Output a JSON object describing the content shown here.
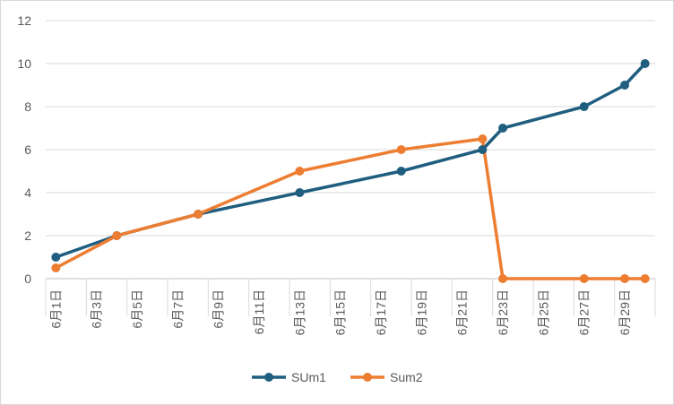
{
  "chart_data": {
    "type": "line",
    "title": "",
    "xlabel": "",
    "ylabel": "",
    "ylim": [
      0,
      12
    ],
    "y_ticks": [
      0,
      2,
      4,
      6,
      8,
      10,
      12
    ],
    "grid": "horizontal",
    "legend_position": "bottom",
    "x_tick_labels": [
      "6月1日",
      "6月3日",
      "6月5日",
      "6月7日",
      "6月9日",
      "6月11日",
      "6月13日",
      "6月15日",
      "6月17日",
      "6月19日",
      "6月21日",
      "6月23日",
      "6月25日",
      "6月27日",
      "6月29日"
    ],
    "x_range": [
      "6月1日",
      "6月30日"
    ],
    "series": [
      {
        "name": "SUm1",
        "color": "#1f5e7f",
        "points": [
          {
            "x": "6月1日",
            "y": 1
          },
          {
            "x": "6月4日",
            "y": 2
          },
          {
            "x": "6月8日",
            "y": 3
          },
          {
            "x": "6月13日",
            "y": 4
          },
          {
            "x": "6月18日",
            "y": 5
          },
          {
            "x": "6月22日",
            "y": 6
          },
          {
            "x": "6月23日",
            "y": 7
          },
          {
            "x": "6月27日",
            "y": 8
          },
          {
            "x": "6月29日",
            "y": 9
          },
          {
            "x": "6月30日",
            "y": 10
          }
        ]
      },
      {
        "name": "Sum2",
        "color": "#ed7d31",
        "points": [
          {
            "x": "6月1日",
            "y": 0.5
          },
          {
            "x": "6月4日",
            "y": 2
          },
          {
            "x": "6月8日",
            "y": 3
          },
          {
            "x": "6月13日",
            "y": 5
          },
          {
            "x": "6月18日",
            "y": 6
          },
          {
            "x": "6月22日",
            "y": 6.5
          },
          {
            "x": "6月23日",
            "y": 0
          },
          {
            "x": "6月27日",
            "y": 0
          },
          {
            "x": "6月29日",
            "y": 0
          },
          {
            "x": "6月30日",
            "y": 0
          }
        ]
      }
    ]
  }
}
